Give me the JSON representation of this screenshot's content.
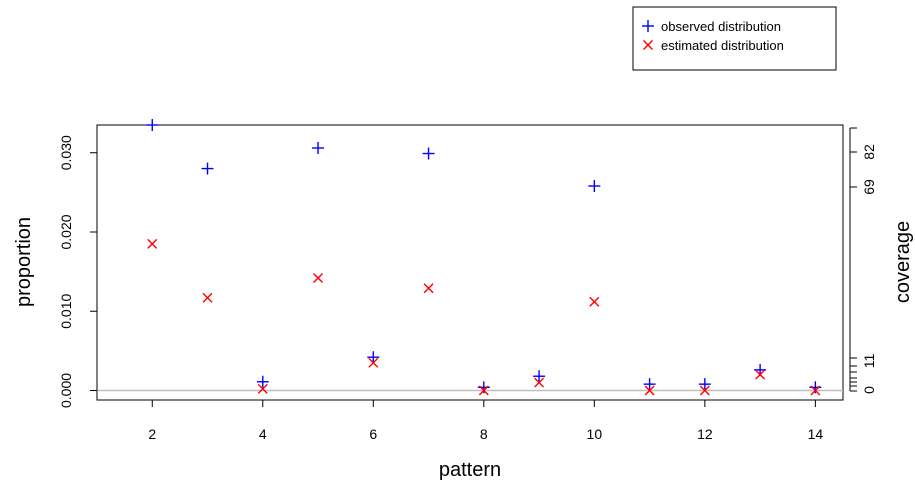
{
  "chart_data": {
    "type": "scatter",
    "xlabel": "pattern",
    "ylabel": "proportion",
    "y2label": "coverage",
    "xlim": [
      1,
      14.5
    ],
    "ylim": [
      -0.0012,
      0.0335
    ],
    "x_ticks": [
      "2",
      "4",
      "6",
      "8",
      "10",
      "12",
      "14"
    ],
    "y_ticks": [
      "0.000",
      "0.010",
      "0.020",
      "0.030"
    ],
    "y2_ticks": [
      "0",
      "11",
      "69",
      "82"
    ],
    "grid": false,
    "legend_position": "top-right",
    "series": [
      {
        "name": "observed distribution",
        "marker": "plus",
        "color": "#0000ff",
        "x": [
          2,
          3,
          4,
          5,
          6,
          7,
          8,
          9,
          10,
          11,
          12,
          13,
          14
        ],
        "y": [
          0.0335,
          0.028,
          0.0011,
          0.0306,
          0.0042,
          0.0299,
          0.0004,
          0.0018,
          0.0258,
          0.0008,
          0.0008,
          0.0026,
          0.0004
        ]
      },
      {
        "name": "estimated distribution",
        "marker": "cross",
        "color": "#ff0000",
        "x": [
          2,
          3,
          4,
          5,
          6,
          7,
          8,
          9,
          10,
          11,
          12,
          13,
          14
        ],
        "y": [
          0.0185,
          0.0117,
          0.0002,
          0.0142,
          0.0035,
          0.0129,
          0.0,
          0.001,
          0.0112,
          0.0,
          0.0,
          0.002,
          0.0
        ]
      }
    ],
    "reference_line_y": 0,
    "reference_line_color": "#bebebe"
  }
}
